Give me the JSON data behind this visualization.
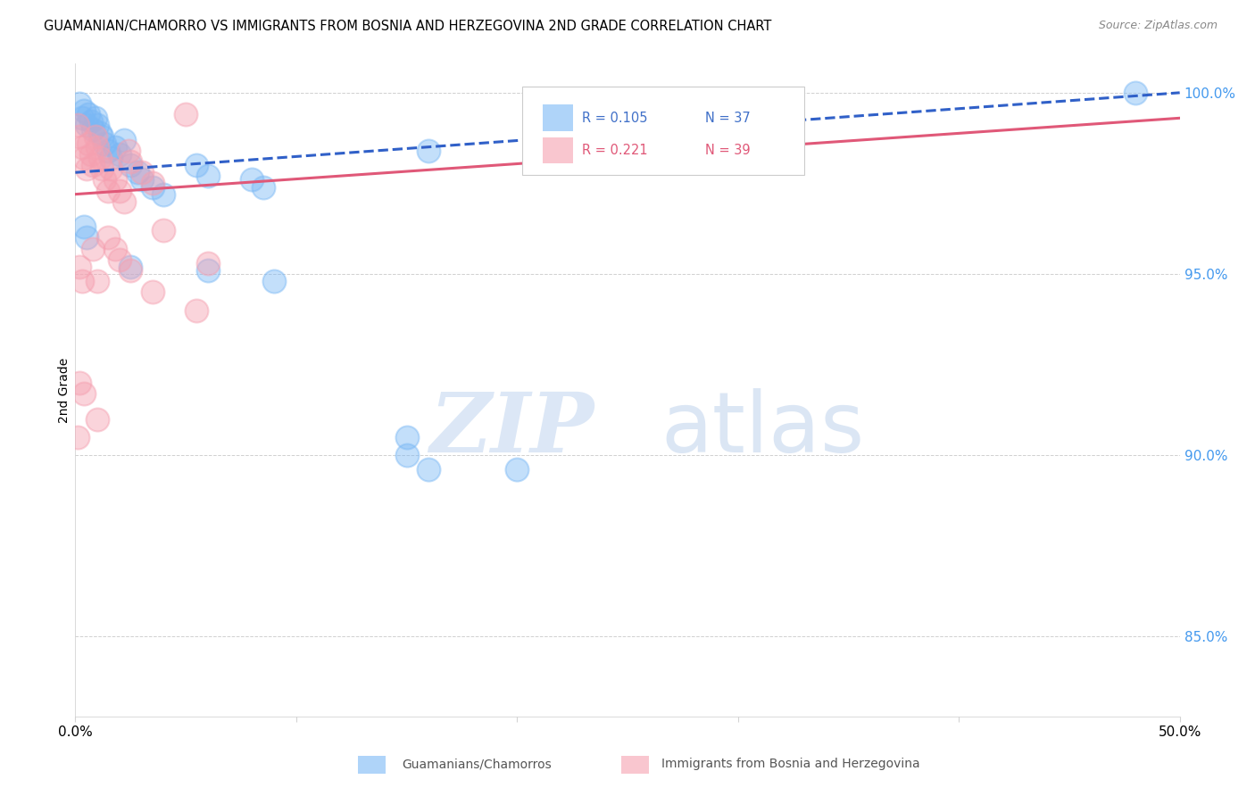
{
  "title": "GUAMANIAN/CHAMORRO VS IMMIGRANTS FROM BOSNIA AND HERZEGOVINA 2ND GRADE CORRELATION CHART",
  "source": "Source: ZipAtlas.com",
  "ylabel": "2nd Grade",
  "ylabel_right_labels": [
    "100.0%",
    "95.0%",
    "90.0%",
    "85.0%"
  ],
  "ylabel_right_values": [
    1.0,
    0.95,
    0.9,
    0.85
  ],
  "legend_blue_r": "R = 0.105",
  "legend_blue_n": "N = 37",
  "legend_pink_r": "R = 0.221",
  "legend_pink_n": "N = 39",
  "blue_color": "#7ab8f5",
  "pink_color": "#f5a0b0",
  "blue_line_color": "#3060c8",
  "pink_line_color": "#e05878",
  "blue_scatter": [
    [
      0.002,
      0.997
    ],
    [
      0.003,
      0.993
    ],
    [
      0.004,
      0.995
    ],
    [
      0.005,
      0.991
    ],
    [
      0.006,
      0.994
    ],
    [
      0.007,
      0.992
    ],
    [
      0.008,
      0.99
    ],
    [
      0.009,
      0.993
    ],
    [
      0.01,
      0.991
    ],
    [
      0.011,
      0.989
    ],
    [
      0.012,
      0.988
    ],
    [
      0.013,
      0.986
    ],
    [
      0.015,
      0.984
    ],
    [
      0.016,
      0.982
    ],
    [
      0.018,
      0.985
    ],
    [
      0.02,
      0.983
    ],
    [
      0.022,
      0.987
    ],
    [
      0.025,
      0.98
    ],
    [
      0.028,
      0.978
    ],
    [
      0.03,
      0.976
    ],
    [
      0.035,
      0.974
    ],
    [
      0.04,
      0.972
    ],
    [
      0.055,
      0.98
    ],
    [
      0.06,
      0.977
    ],
    [
      0.08,
      0.976
    ],
    [
      0.085,
      0.974
    ],
    [
      0.16,
      0.984
    ],
    [
      0.48,
      1.0
    ],
    [
      0.004,
      0.963
    ],
    [
      0.005,
      0.96
    ],
    [
      0.025,
      0.952
    ],
    [
      0.06,
      0.951
    ],
    [
      0.09,
      0.948
    ],
    [
      0.15,
      0.905
    ],
    [
      0.16,
      0.896
    ],
    [
      0.2,
      0.896
    ],
    [
      0.15,
      0.9
    ]
  ],
  "pink_scatter": [
    [
      0.001,
      0.991
    ],
    [
      0.002,
      0.988
    ],
    [
      0.003,
      0.985
    ],
    [
      0.004,
      0.982
    ],
    [
      0.005,
      0.979
    ],
    [
      0.006,
      0.986
    ],
    [
      0.007,
      0.983
    ],
    [
      0.008,
      0.98
    ],
    [
      0.009,
      0.988
    ],
    [
      0.01,
      0.985
    ],
    [
      0.011,
      0.982
    ],
    [
      0.012,
      0.979
    ],
    [
      0.013,
      0.976
    ],
    [
      0.015,
      0.973
    ],
    [
      0.016,
      0.979
    ],
    [
      0.018,
      0.976
    ],
    [
      0.02,
      0.973
    ],
    [
      0.022,
      0.97
    ],
    [
      0.024,
      0.984
    ],
    [
      0.025,
      0.981
    ],
    [
      0.03,
      0.978
    ],
    [
      0.035,
      0.975
    ],
    [
      0.04,
      0.962
    ],
    [
      0.05,
      0.994
    ],
    [
      0.002,
      0.952
    ],
    [
      0.003,
      0.948
    ],
    [
      0.008,
      0.957
    ],
    [
      0.01,
      0.948
    ],
    [
      0.015,
      0.96
    ],
    [
      0.018,
      0.957
    ],
    [
      0.02,
      0.954
    ],
    [
      0.025,
      0.951
    ],
    [
      0.06,
      0.953
    ],
    [
      0.002,
      0.92
    ],
    [
      0.004,
      0.917
    ],
    [
      0.035,
      0.945
    ],
    [
      0.055,
      0.94
    ],
    [
      0.001,
      0.905
    ],
    [
      0.01,
      0.91
    ]
  ],
  "watermark_zip": "ZIP",
  "watermark_atlas": "atlas",
  "xmin": 0.0,
  "xmax": 0.5,
  "ymin": 0.828,
  "ymax": 1.008,
  "blue_line_x": [
    0.0,
    0.5
  ],
  "blue_line_y": [
    0.978,
    1.0
  ],
  "pink_line_x": [
    0.0,
    0.5
  ],
  "pink_line_y": [
    0.972,
    0.993
  ]
}
